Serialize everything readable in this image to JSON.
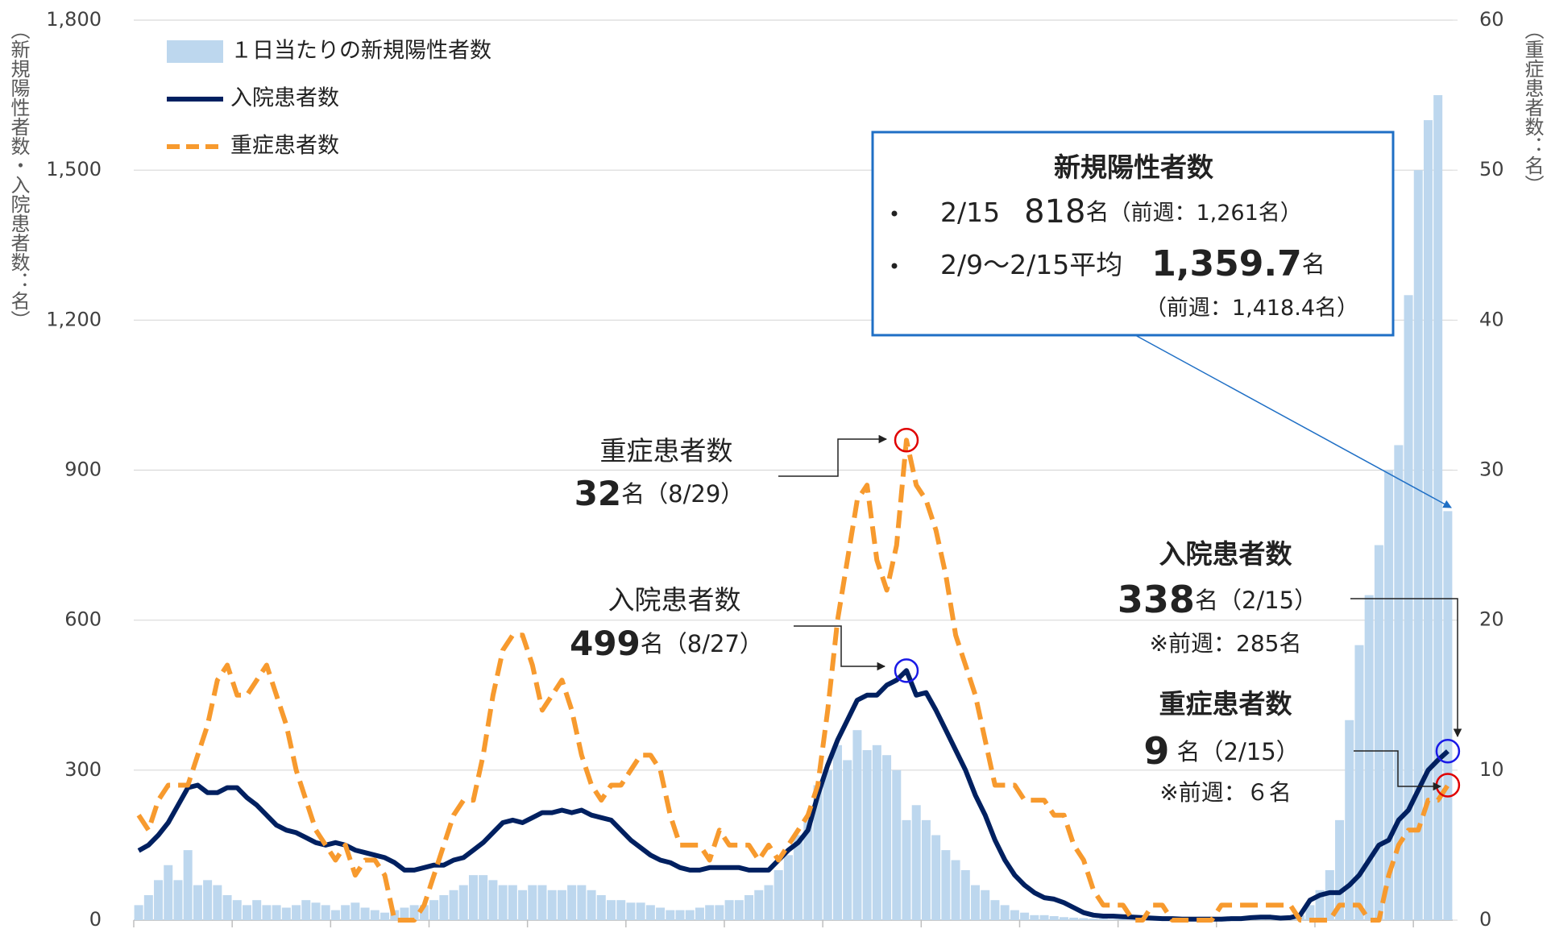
{
  "chart_data": {
    "type": "bar",
    "legend": "top-left",
    "grid": true,
    "y_label": "（新規陽性者数・入院患者数：名）",
    "y2_label": "（重症患者数：名）",
    "categories": [
      null,
      null,
      null,
      null,
      null,
      null,
      null,
      null,
      null,
      null,
      null,
      null,
      null,
      null,
      null,
      null,
      null,
      null,
      null,
      null,
      null,
      null,
      null,
      null,
      null,
      null,
      null,
      null,
      null,
      null,
      null,
      null,
      null,
      null,
      null,
      null,
      null,
      null,
      null,
      null,
      null,
      null,
      null,
      null,
      null,
      null,
      null,
      null,
      null,
      null,
      null,
      null,
      null,
      null,
      null,
      null,
      null,
      null,
      null,
      null,
      null,
      null,
      null,
      null,
      null,
      null,
      null,
      null,
      null,
      null,
      null,
      null,
      null,
      null,
      null,
      null,
      null,
      null,
      null,
      null,
      null,
      null,
      null,
      null,
      null,
      null,
      null,
      null,
      null,
      null,
      null,
      null,
      null,
      null,
      null,
      null,
      null,
      null,
      null,
      null,
      null,
      null,
      null,
      null,
      null,
      null,
      null,
      null,
      null,
      null,
      null,
      null,
      null,
      null,
      null,
      null,
      null,
      null,
      null,
      null,
      null,
      null,
      null,
      null,
      null,
      null,
      null,
      null,
      null,
      null,
      null,
      null,
      null,
      null
    ],
    "ylim": [
      0,
      1800
    ],
    "yticks": [
      0,
      300,
      600,
      900,
      {
        "value": 1200,
        "label": "1,200"
      },
      {
        "value": 1500,
        "label": "1,500"
      },
      {
        "value": 1800,
        "label": "1,800"
      }
    ],
    "y2lim": [
      0,
      60
    ],
    "y2ticks": [
      0,
      10,
      20,
      30,
      40,
      50,
      60
    ],
    "series": [
      {
        "name": "１日当たりの新規陽性者数",
        "type": "bar",
        "color": "#bdd7ee",
        "values": [
          30,
          50,
          80,
          110,
          80,
          140,
          70,
          80,
          70,
          50,
          40,
          30,
          40,
          30,
          30,
          25,
          30,
          40,
          35,
          30,
          20,
          30,
          35,
          25,
          20,
          15,
          20,
          25,
          30,
          30,
          40,
          50,
          60,
          70,
          90,
          90,
          80,
          70,
          70,
          60,
          70,
          70,
          60,
          60,
          70,
          70,
          60,
          50,
          40,
          40,
          35,
          35,
          30,
          25,
          20,
          20,
          20,
          25,
          30,
          30,
          40,
          40,
          50,
          60,
          70,
          100,
          130,
          170,
          200,
          270,
          300,
          350,
          320,
          380,
          340,
          350,
          330,
          300,
          200,
          230,
          200,
          170,
          140,
          120,
          100,
          70,
          60,
          40,
          30,
          20,
          15,
          10,
          10,
          8,
          6,
          5,
          4,
          3,
          3,
          2,
          2,
          2,
          2,
          1,
          1,
          1,
          1,
          1,
          1,
          1,
          1,
          1,
          1,
          2,
          2,
          1,
          2,
          3,
          10,
          30,
          60,
          100,
          200,
          400,
          550,
          650,
          750,
          900,
          950,
          1250,
          1500,
          1600,
          1650,
          818
        ]
      },
      {
        "name": "入院患者数",
        "type": "line",
        "color": "#002060",
        "values": [
          139,
          150,
          170,
          195,
          230,
          265,
          270,
          255,
          255,
          265,
          265,
          245,
          230,
          210,
          190,
          180,
          175,
          165,
          155,
          150,
          155,
          150,
          140,
          135,
          130,
          125,
          115,
          100,
          100,
          105,
          110,
          110,
          120,
          125,
          140,
          155,
          175,
          195,
          200,
          195,
          205,
          215,
          215,
          220,
          215,
          220,
          210,
          205,
          200,
          180,
          160,
          145,
          130,
          120,
          115,
          105,
          100,
          100,
          105,
          105,
          105,
          105,
          100,
          100,
          100,
          120,
          140,
          155,
          180,
          250,
          310,
          360,
          400,
          440,
          450,
          450,
          470,
          480,
          499,
          450,
          455,
          420,
          380,
          340,
          300,
          250,
          210,
          160,
          120,
          90,
          70,
          55,
          45,
          42,
          35,
          25,
          15,
          10,
          8,
          8,
          7,
          6,
          5,
          4,
          3,
          3,
          2,
          2,
          2,
          2,
          2,
          3,
          3,
          5,
          6,
          6,
          4,
          5,
          10,
          40,
          50,
          55,
          55,
          70,
          90,
          120,
          150,
          160,
          200,
          220,
          260,
          300,
          320,
          338
        ]
      },
      {
        "name": "重症患者数",
        "type": "line",
        "axis": "y2",
        "dashed": true,
        "color": "#f79a2e",
        "values": [
          7,
          6,
          8,
          9,
          9,
          9,
          11,
          13,
          16,
          17,
          15,
          15,
          16,
          17,
          15,
          13,
          10,
          8,
          6,
          5,
          4,
          5,
          3,
          4,
          4,
          3,
          0,
          0,
          0,
          1,
          3,
          5,
          7,
          8,
          8,
          11,
          15,
          18,
          19,
          19,
          17,
          14,
          15,
          16,
          14,
          11,
          9,
          8,
          9,
          9,
          10,
          11,
          11,
          10,
          7,
          5,
          5,
          5,
          4,
          6,
          5,
          5,
          5,
          4,
          5,
          4,
          5,
          6,
          7,
          9,
          14,
          20,
          24,
          28,
          29,
          24,
          22,
          25,
          32,
          29,
          28,
          26,
          23,
          19,
          17,
          15,
          12,
          9,
          9,
          9,
          8,
          8,
          8,
          7,
          7,
          5,
          4,
          2,
          1,
          1,
          1,
          0,
          0,
          1,
          1,
          0,
          0,
          0,
          0,
          0,
          1,
          1,
          1,
          1,
          1,
          1,
          1,
          1,
          0,
          0,
          0,
          0,
          1,
          1,
          1,
          0,
          0,
          3,
          5,
          6,
          6,
          8,
          8,
          9
        ]
      }
    ],
    "annotations": {
      "callout": {
        "title": "新規陽性者数",
        "line1": [
          "2/15",
          "818",
          "名",
          "（前週：1,261名）"
        ],
        "line2": [
          "2/9～2/15平均",
          "1,359.7",
          "名"
        ],
        "line3": "（前週：1,418.4名）"
      },
      "severe_peak": [
        "重症患者数",
        "32",
        "名（8/29）"
      ],
      "hosp_peak": [
        "入院患者数",
        "499",
        "名（8/27）"
      ],
      "hosp_latest": [
        "入院患者数",
        "338",
        "名（2/15）",
        "※前週：285名"
      ],
      "severe_latest": [
        "重症患者数",
        "9",
        " 名（2/15）",
        "※前週：６名"
      ]
    }
  }
}
